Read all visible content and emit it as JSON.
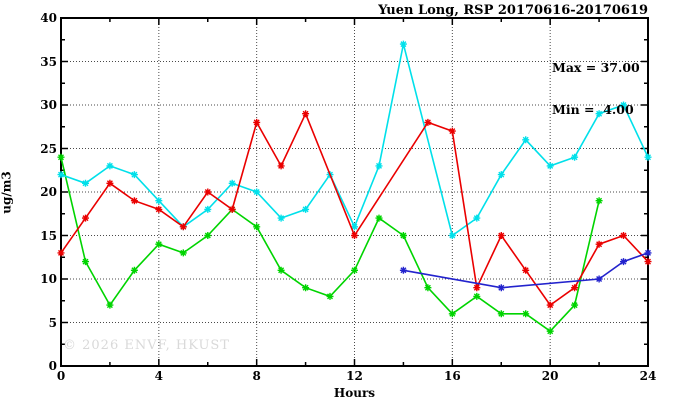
{
  "title": "Yuen Long, RSP 20170616-20170619",
  "legend": {
    "max_label": "Max = 37.00",
    "min_label": "Min =  4.00"
  },
  "watermark": "© 2026 ENVF, HKUST",
  "axes": {
    "ylabel": "ug/m3",
    "xlabel": "Hours"
  },
  "chart_data": {
    "type": "line",
    "title": "Yuen Long, RSP 20170616-20170619",
    "xlabel": "Hours",
    "ylabel": "ug/m3",
    "xlim": [
      0,
      24
    ],
    "ylim": [
      0,
      40
    ],
    "x_major_ticks": [
      0,
      4,
      8,
      12,
      16,
      20,
      24
    ],
    "x_minor_ticks": [
      2,
      6,
      10,
      14,
      18,
      22
    ],
    "y_major_ticks": [
      0,
      5,
      10,
      15,
      20,
      25,
      30,
      35,
      40
    ],
    "y_minor_ticks": [
      2.5,
      7.5,
      12.5,
      17.5,
      22.5,
      27.5,
      32.5,
      37.5
    ],
    "grid": true,
    "legend_position": "top-right-inside",
    "annotations": [
      "Max = 37.00",
      "Min =  4.00"
    ],
    "stat_max": 37.0,
    "stat_min": 4.0,
    "series": [
      {
        "name": "green",
        "color": "#00d400",
        "points": [
          [
            0,
            24
          ],
          [
            1,
            12
          ],
          [
            2,
            7
          ],
          [
            3,
            11
          ],
          [
            4,
            14
          ],
          [
            5,
            13
          ],
          [
            6,
            15
          ],
          [
            7,
            18
          ],
          [
            8,
            16
          ],
          [
            9,
            11
          ],
          [
            10,
            9
          ],
          [
            11,
            8
          ],
          [
            12,
            11
          ],
          [
            13,
            17
          ],
          [
            14,
            15
          ],
          [
            15,
            9
          ],
          [
            16,
            6
          ],
          [
            17,
            8
          ],
          [
            18,
            6
          ],
          [
            19,
            6
          ],
          [
            20,
            4
          ],
          [
            21,
            7
          ],
          [
            22,
            19
          ]
        ]
      },
      {
        "name": "cyan",
        "color": "#00e0ea",
        "points": [
          [
            0,
            22
          ],
          [
            1,
            21
          ],
          [
            2,
            23
          ],
          [
            3,
            22
          ],
          [
            4,
            19
          ],
          [
            5,
            16
          ],
          [
            6,
            18
          ],
          [
            7,
            21
          ],
          [
            8,
            20
          ],
          [
            9,
            17
          ],
          [
            10,
            18
          ],
          [
            11,
            22
          ],
          [
            12,
            16
          ],
          [
            13,
            23
          ],
          [
            14,
            37
          ],
          [
            16,
            15
          ],
          [
            17,
            17
          ],
          [
            18,
            22
          ],
          [
            19,
            26
          ],
          [
            20,
            23
          ],
          [
            21,
            24
          ],
          [
            22,
            29
          ],
          [
            23,
            30
          ],
          [
            24,
            24
          ]
        ]
      },
      {
        "name": "red",
        "color": "#ea0000",
        "points": [
          [
            0,
            13
          ],
          [
            1,
            17
          ],
          [
            2,
            21
          ],
          [
            3,
            19
          ],
          [
            4,
            18
          ],
          [
            5,
            16
          ],
          [
            6,
            20
          ],
          [
            7,
            18
          ],
          [
            8,
            28
          ],
          [
            9,
            23
          ],
          [
            10,
            29
          ],
          [
            12,
            15
          ],
          [
            15,
            28
          ],
          [
            16,
            27
          ],
          [
            17,
            9
          ],
          [
            18,
            15
          ],
          [
            19,
            11
          ],
          [
            20,
            7
          ],
          [
            21,
            9
          ],
          [
            22,
            14
          ],
          [
            23,
            15
          ],
          [
            24,
            12
          ]
        ]
      },
      {
        "name": "blue",
        "color": "#2323cd",
        "points": [
          [
            14,
            11
          ],
          [
            18,
            9
          ],
          [
            22,
            10
          ],
          [
            23,
            12
          ],
          [
            24,
            13
          ]
        ]
      }
    ]
  }
}
